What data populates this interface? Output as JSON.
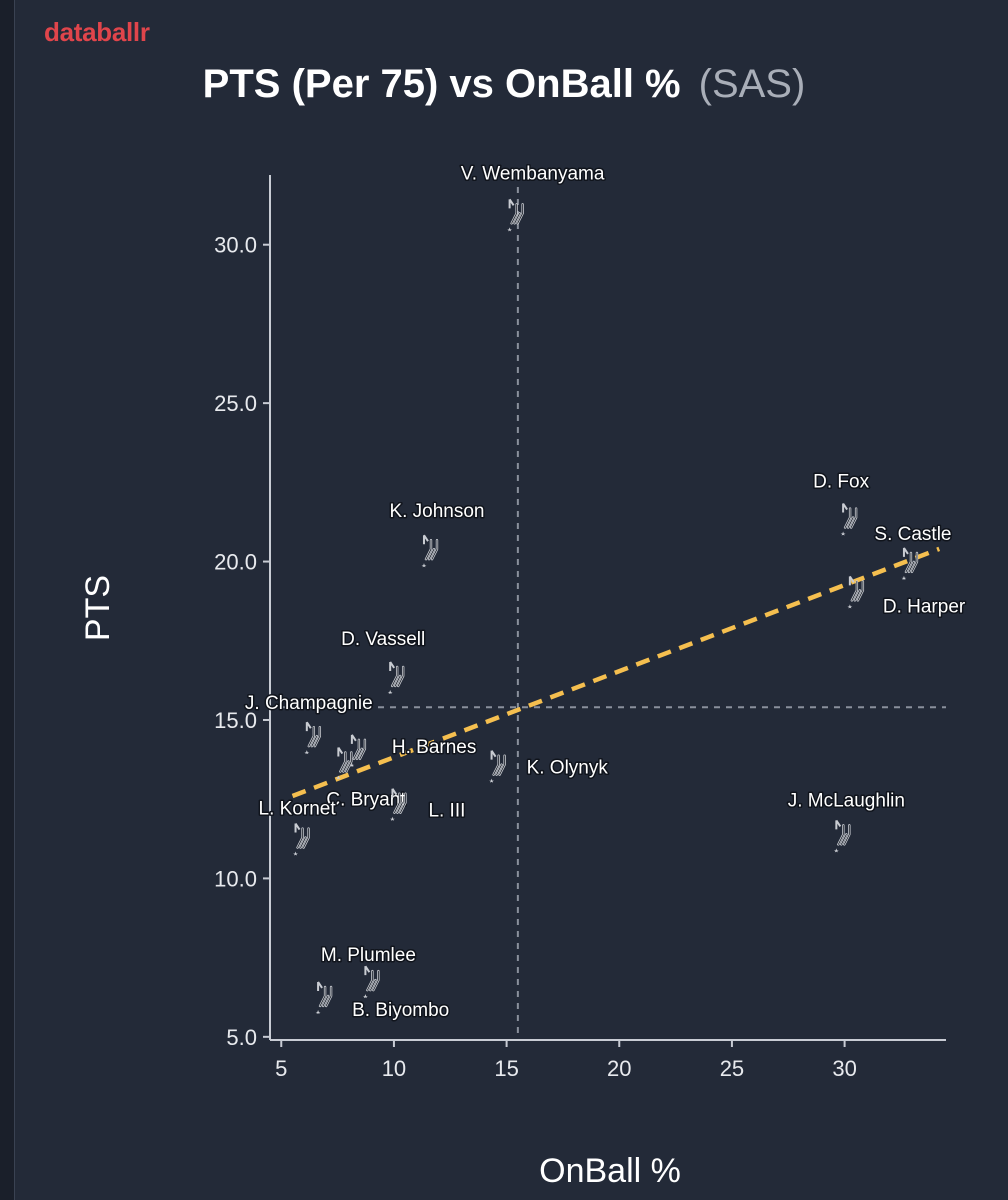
{
  "brand": "databallr",
  "title": {
    "main": "PTS (Per 75) vs OnBall %",
    "team": "(SAS)"
  },
  "colors": {
    "background": "#232a38",
    "brand": "#e0454b",
    "trendline": "#f5bf4f",
    "reference_lines": "#8a909c",
    "marker": "#c9ccd2"
  },
  "chart_data": {
    "type": "scatter",
    "xlabel": "OnBall %",
    "ylabel": "PTS",
    "xlim": [
      4.5,
      34.5
    ],
    "ylim": [
      4.9,
      32.2
    ],
    "xticks": [
      5,
      10,
      15,
      20,
      25,
      30
    ],
    "yticks": [
      5.0,
      10.0,
      15.0,
      20.0,
      25.0,
      30.0
    ],
    "xtick_labels": [
      "5",
      "10",
      "15",
      "20",
      "25",
      "30"
    ],
    "ytick_labels": [
      "5.0",
      "10.0",
      "15.0",
      "20.0",
      "25.0",
      "30.0"
    ],
    "grid": false,
    "marker_icon": "spurs-logo-icon",
    "reference_lines": {
      "x": 15.5,
      "y": 15.4
    },
    "trendline": {
      "x": [
        5.5,
        34.2
      ],
      "y": [
        12.6,
        20.4
      ]
    },
    "points": [
      {
        "name": "V. Wembanyama",
        "x": 15.4,
        "y": 30.8
      },
      {
        "name": "D. Fox",
        "x": 30.2,
        "y": 21.2
      },
      {
        "name": "S. Castle",
        "x": 32.9,
        "y": 19.8
      },
      {
        "name": "D. Harper",
        "x": 30.5,
        "y": 18.9
      },
      {
        "name": "K. Johnson",
        "x": 11.6,
        "y": 20.2
      },
      {
        "name": "D. Vassell",
        "x": 10.1,
        "y": 16.2
      },
      {
        "name": "J. Champagnie",
        "x": 6.4,
        "y": 14.3
      },
      {
        "name": "H. Barnes",
        "x": 8.4,
        "y": 13.9
      },
      {
        "name": "C. Bryant",
        "x": 7.8,
        "y": 13.5
      },
      {
        "name": "K. Olynyk",
        "x": 14.6,
        "y": 13.4
      },
      {
        "name": "L. III",
        "x": 10.2,
        "y": 12.2
      },
      {
        "name": "L. Kornet",
        "x": 5.9,
        "y": 11.1
      },
      {
        "name": "J. McLaughlin",
        "x": 29.9,
        "y": 11.2
      },
      {
        "name": "M. Plumlee",
        "x": 9.0,
        "y": 6.6
      },
      {
        "name": "B. Biyombo",
        "x": 6.9,
        "y": 6.1
      }
    ]
  }
}
